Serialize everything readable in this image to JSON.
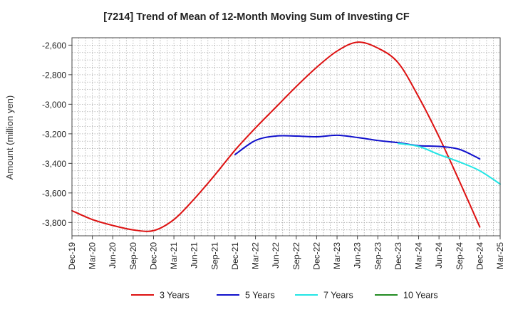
{
  "chart_data": {
    "type": "line",
    "title": "[7214]  Trend of Mean of 12-Month Moving Sum of Investing CF",
    "xlabel": "",
    "ylabel": "Amount (million yen)",
    "ylim": [
      -3890,
      -2550
    ],
    "yticks": [
      -2600,
      -2800,
      -3000,
      -3200,
      -3400,
      -3600,
      -3800
    ],
    "ytick_labels": [
      "-2,600",
      "-2,800",
      "-3,000",
      "-3,200",
      "-3,400",
      "-3,600",
      "-3,800"
    ],
    "x_start": "Dec-19",
    "x_end": "Mar-25",
    "xtick_labels": [
      "Dec-19",
      "Mar-20",
      "Jun-20",
      "Sep-20",
      "Dec-20",
      "Mar-21",
      "Jun-21",
      "Sep-21",
      "Dec-21",
      "Mar-22",
      "Jun-22",
      "Sep-22",
      "Dec-22",
      "Mar-23",
      "Jun-23",
      "Sep-23",
      "Dec-23",
      "Mar-24",
      "Jun-24",
      "Sep-24",
      "Dec-24",
      "Mar-25"
    ],
    "grid": true,
    "legend_position": "bottom",
    "series": [
      {
        "name": "3 Years",
        "color": "#dd1111",
        "start_quarter": 0,
        "values": [
          -3720,
          -3780,
          -3820,
          -3850,
          -3855,
          -3780,
          -3640,
          -3480,
          -3310,
          -3160,
          -3020,
          -2880,
          -2750,
          -2640,
          -2580,
          -2620,
          -2720,
          -2950,
          -3220,
          -3520,
          -3830
        ]
      },
      {
        "name": "5 Years",
        "color": "#1111cc",
        "start_quarter": 8,
        "values": [
          -3340,
          -3245,
          -3215,
          -3215,
          -3220,
          -3210,
          -3225,
          -3245,
          -3260,
          -3280,
          -3285,
          -3305,
          -3370
        ]
      },
      {
        "name": "7 Years",
        "color": "#22e5e5",
        "start_quarter": 16,
        "values": [
          -3265,
          -3285,
          -3340,
          -3390,
          -3450,
          -3540
        ]
      },
      {
        "name": "10 Years",
        "color": "#228b22",
        "start_quarter": 0,
        "values": []
      }
    ]
  }
}
